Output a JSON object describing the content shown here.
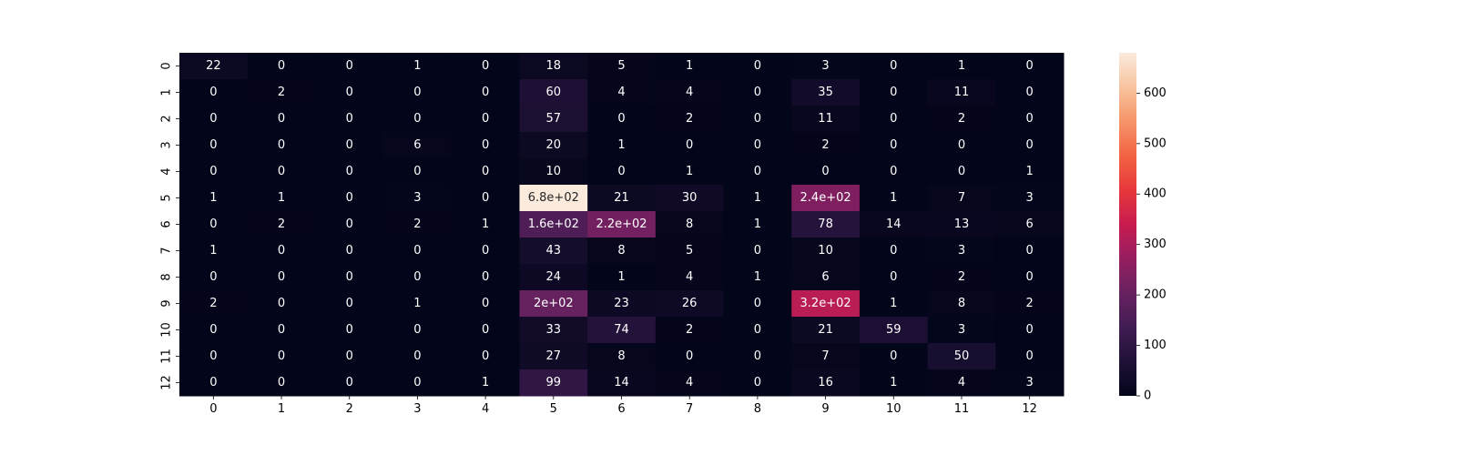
{
  "chart_data": {
    "type": "heatmap",
    "title": "",
    "xlabel": "",
    "ylabel": "",
    "x_categories": [
      "0",
      "1",
      "2",
      "3",
      "4",
      "5",
      "6",
      "7",
      "8",
      "9",
      "10",
      "11",
      "12"
    ],
    "y_categories": [
      "0",
      "1",
      "2",
      "3",
      "4",
      "5",
      "6",
      "7",
      "8",
      "9",
      "10",
      "11",
      "12"
    ],
    "values": [
      [
        22,
        0,
        0,
        1,
        0,
        18,
        5,
        1,
        0,
        3,
        0,
        1,
        0
      ],
      [
        0,
        2,
        0,
        0,
        0,
        60,
        4,
        4,
        0,
        35,
        0,
        11,
        0
      ],
      [
        0,
        0,
        0,
        0,
        0,
        57,
        0,
        2,
        0,
        11,
        0,
        2,
        0
      ],
      [
        0,
        0,
        0,
        6,
        0,
        20,
        1,
        0,
        0,
        2,
        0,
        0,
        0
      ],
      [
        0,
        0,
        0,
        0,
        0,
        10,
        0,
        1,
        0,
        0,
        0,
        0,
        1
      ],
      [
        1,
        1,
        0,
        3,
        0,
        680,
        21,
        30,
        1,
        240,
        1,
        7,
        3
      ],
      [
        0,
        2,
        0,
        2,
        1,
        160,
        220,
        8,
        1,
        78,
        14,
        13,
        6
      ],
      [
        1,
        0,
        0,
        0,
        0,
        43,
        8,
        5,
        0,
        10,
        0,
        3,
        0
      ],
      [
        0,
        0,
        0,
        0,
        0,
        24,
        1,
        4,
        1,
        6,
        0,
        2,
        0
      ],
      [
        2,
        0,
        0,
        1,
        0,
        200,
        23,
        26,
        0,
        320,
        1,
        8,
        2
      ],
      [
        0,
        0,
        0,
        0,
        0,
        33,
        74,
        2,
        0,
        21,
        59,
        3,
        0
      ],
      [
        0,
        0,
        0,
        0,
        0,
        27,
        8,
        0,
        0,
        7,
        0,
        50,
        0
      ],
      [
        0,
        0,
        0,
        0,
        1,
        99,
        14,
        4,
        0,
        16,
        1,
        4,
        3
      ]
    ],
    "labels": [
      [
        "22",
        "0",
        "0",
        "1",
        "0",
        "18",
        "5",
        "1",
        "0",
        "3",
        "0",
        "1",
        "0"
      ],
      [
        "0",
        "2",
        "0",
        "0",
        "0",
        "60",
        "4",
        "4",
        "0",
        "35",
        "0",
        "11",
        "0"
      ],
      [
        "0",
        "0",
        "0",
        "0",
        "0",
        "57",
        "0",
        "2",
        "0",
        "11",
        "0",
        "2",
        "0"
      ],
      [
        "0",
        "0",
        "0",
        "6",
        "0",
        "20",
        "1",
        "0",
        "0",
        "2",
        "0",
        "0",
        "0"
      ],
      [
        "0",
        "0",
        "0",
        "0",
        "0",
        "10",
        "0",
        "1",
        "0",
        "0",
        "0",
        "0",
        "1"
      ],
      [
        "1",
        "1",
        "0",
        "3",
        "0",
        "6.8e+02",
        "21",
        "30",
        "1",
        "2.4e+02",
        "1",
        "7",
        "3"
      ],
      [
        "0",
        "2",
        "0",
        "2",
        "1",
        "1.6e+02",
        "2.2e+02",
        "8",
        "1",
        "78",
        "14",
        "13",
        "6"
      ],
      [
        "1",
        "0",
        "0",
        "0",
        "0",
        "43",
        "8",
        "5",
        "0",
        "10",
        "0",
        "3",
        "0"
      ],
      [
        "0",
        "0",
        "0",
        "0",
        "0",
        "24",
        "1",
        "4",
        "1",
        "6",
        "0",
        "2",
        "0"
      ],
      [
        "2",
        "0",
        "0",
        "1",
        "0",
        "2e+02",
        "23",
        "26",
        "0",
        "3.2e+02",
        "1",
        "8",
        "2"
      ],
      [
        "0",
        "0",
        "0",
        "0",
        "0",
        "33",
        "74",
        "2",
        "0",
        "21",
        "59",
        "3",
        "0"
      ],
      [
        "0",
        "0",
        "0",
        "0",
        "0",
        "27",
        "8",
        "0",
        "0",
        "7",
        "0",
        "50",
        "0"
      ],
      [
        "0",
        "0",
        "0",
        "0",
        "1",
        "99",
        "14",
        "4",
        "0",
        "16",
        "1",
        "4",
        "3"
      ]
    ],
    "colorbar": {
      "min": 0,
      "max": 680,
      "ticks": [
        0,
        100,
        200,
        300,
        400,
        500,
        600
      ],
      "colormap": "rocket"
    },
    "grid": false
  }
}
